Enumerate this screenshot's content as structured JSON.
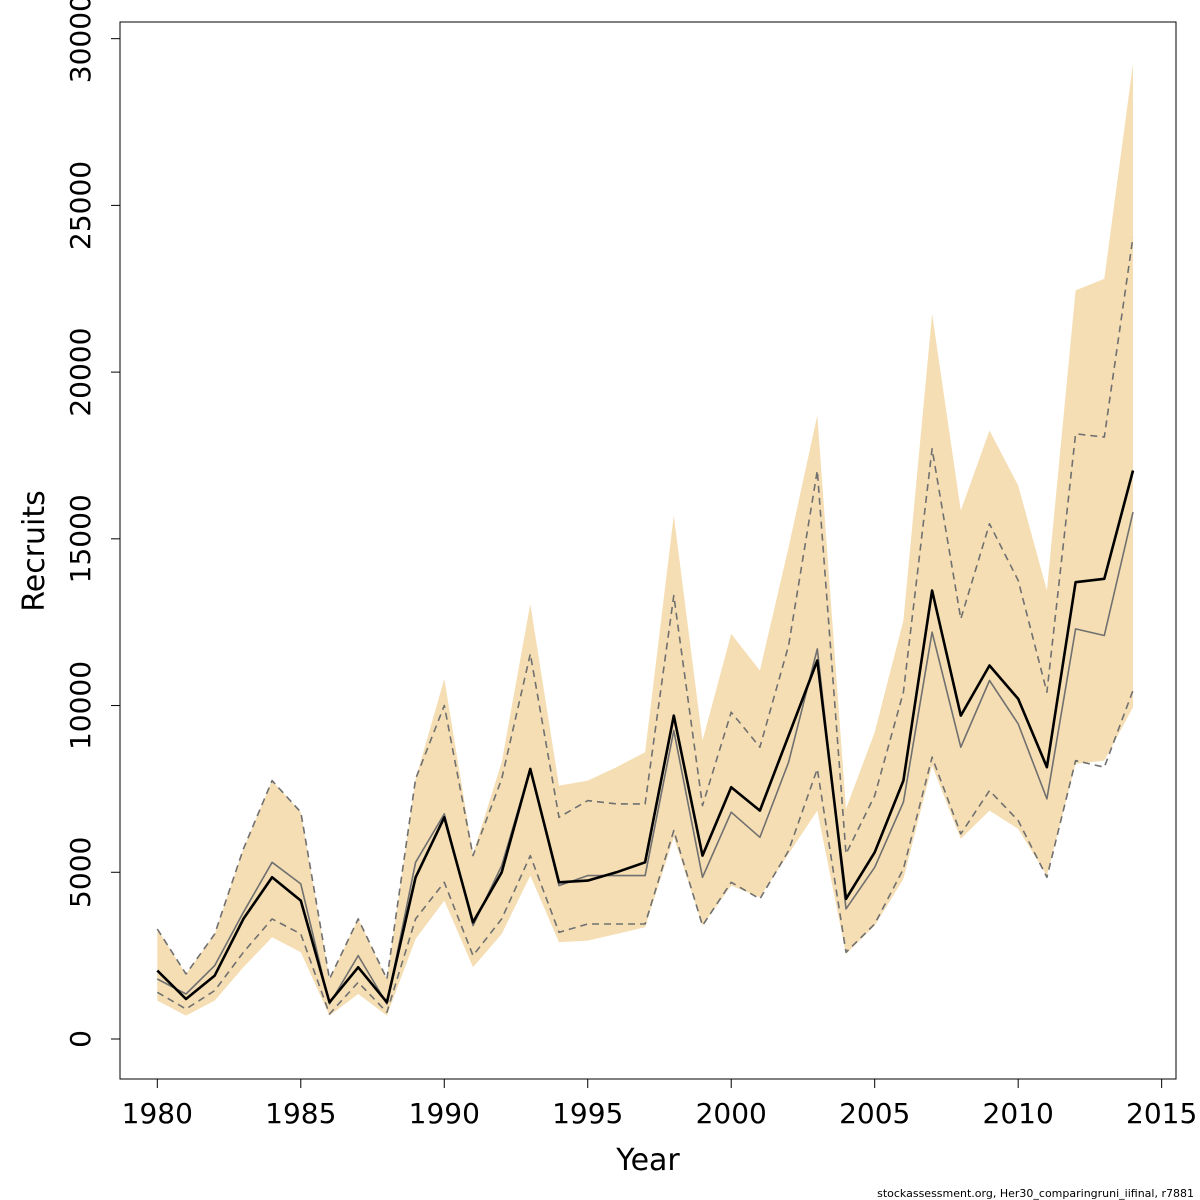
{
  "chart_data": {
    "type": "area",
    "xlabel": "Year",
    "ylabel": "Recruits",
    "xlim": [
      1978.7,
      2015.5
    ],
    "ylim": [
      -1200,
      30500
    ],
    "x_ticks": [
      1980,
      1985,
      1990,
      1995,
      2000,
      2005,
      2010,
      2015
    ],
    "y_ticks": [
      0,
      5000,
      10000,
      15000,
      20000,
      25000,
      30000
    ],
    "x_tick_labels": [
      "1980",
      "1985",
      "1990",
      "1995",
      "2000",
      "2005",
      "2010",
      "2015"
    ],
    "y_tick_labels": [
      "0",
      "5000",
      "10000",
      "15000",
      "20000",
      "25000",
      "30000"
    ],
    "grid": false,
    "x": [
      1980,
      1981,
      1982,
      1983,
      1984,
      1985,
      1986,
      1987,
      1988,
      1989,
      1990,
      1991,
      1992,
      1993,
      1994,
      1995,
      1996,
      1997,
      1998,
      1999,
      2000,
      2001,
      2002,
      2003,
      2004,
      2005,
      2006,
      2007,
      2008,
      2009,
      2010,
      2011,
      2012,
      2013,
      2014
    ],
    "band": {
      "color": "#f5deb3",
      "upper": [
        3300,
        1950,
        3150,
        5700,
        7750,
        6800,
        1800,
        3600,
        1800,
        7800,
        10800,
        5550,
        8300,
        13050,
        7600,
        7750,
        8150,
        8600,
        15700,
        8950,
        12150,
        11050,
        14750,
        18700,
        6900,
        9200,
        12550,
        21750,
        15850,
        18250,
        16600,
        13450,
        22450,
        22800,
        29250
      ],
      "lower": [
        1150,
        700,
        1150,
        2150,
        3050,
        2600,
        700,
        1350,
        700,
        3000,
        4150,
        2150,
        3150,
        4900,
        2900,
        2950,
        3150,
        3350,
        6050,
        3400,
        4600,
        4250,
        5550,
        6850,
        2550,
        3400,
        4800,
        8200,
        6000,
        6850,
        6300,
        4900,
        8250,
        8350,
        9950
      ]
    },
    "series": [
      {
        "color": "#000000",
        "style": "solid",
        "width": 2.6,
        "values": [
          2050,
          1200,
          1900,
          3600,
          4850,
          4150,
          1100,
          2150,
          1100,
          4850,
          6650,
          3500,
          5000,
          8100,
          4700,
          4750,
          5000,
          5300,
          9700,
          5500,
          7550,
          6850,
          9100,
          11350,
          4200,
          5600,
          7750,
          13450,
          9700,
          11200,
          10200,
          8150,
          13700,
          13800,
          17050
        ]
      },
      {
        "color": "#707070",
        "style": "solid",
        "width": 1.6,
        "values": [
          1800,
          1350,
          2200,
          3800,
          5300,
          4650,
          1050,
          2500,
          1050,
          5300,
          6750,
          3400,
          5200,
          8100,
          4600,
          4900,
          4900,
          4900,
          9250,
          4850,
          6800,
          6050,
          8300,
          11700,
          3900,
          5150,
          7100,
          12200,
          8750,
          10750,
          9450,
          7200,
          12300,
          12100,
          15800
        ]
      },
      {
        "color": "#707070",
        "style": "dashed",
        "width": 1.6,
        "values": [
          3300,
          1950,
          3150,
          5700,
          7750,
          6800,
          1800,
          3600,
          1800,
          7800,
          10000,
          5500,
          7800,
          11550,
          6650,
          7150,
          7050,
          7050,
          13300,
          7000,
          9800,
          8750,
          11800,
          17050,
          5550,
          7300,
          10400,
          17700,
          12600,
          15450,
          13750,
          10400,
          18150,
          18050,
          24050
        ]
      },
      {
        "color": "#707070",
        "style": "dashed",
        "width": 1.6,
        "values": [
          1400,
          900,
          1450,
          2600,
          3600,
          3150,
          750,
          1700,
          800,
          3600,
          4700,
          2500,
          3600,
          5500,
          3200,
          3450,
          3450,
          3450,
          6250,
          3400,
          4700,
          4200,
          5650,
          8100,
          2600,
          3450,
          5100,
          8450,
          6150,
          7450,
          6550,
          4850,
          8350,
          8150,
          10450
        ]
      }
    ]
  },
  "footer": "stockassessment.org, Her30_comparingruni_iifinal, r7881"
}
